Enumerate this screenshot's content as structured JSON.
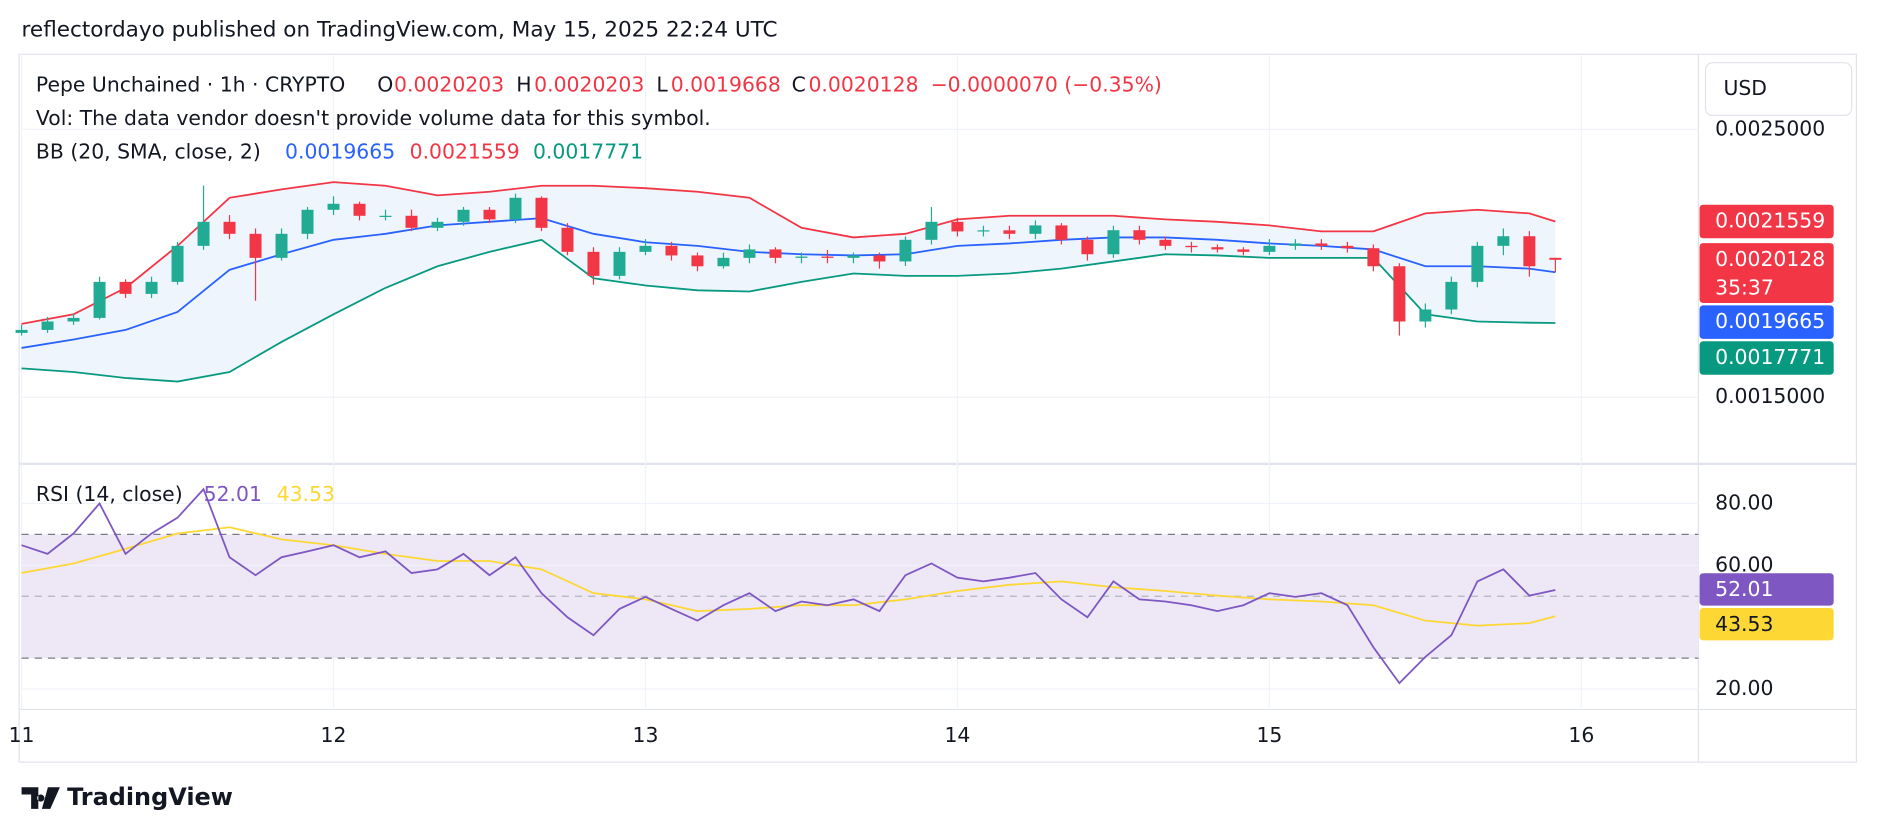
{
  "header": "reflectordayo published on TradingView.com, May 15, 2025 22:24 UTC",
  "footer": "TradingView",
  "chart_data": {
    "type": "candlestick",
    "symbol": "Pepe Unchained · 1h · CRYPTO",
    "legend_keys": [
      "O",
      "H",
      "L",
      "C"
    ],
    "change": "−0.0000070 (−0.35%)",
    "volume_note": "Vol: The data vendor doesn't provide volume data for this symbol.",
    "currency": "USD",
    "countdown": "35:37",
    "up_color": "#22ab94",
    "down_color": "#f23645",
    "xlim": [
      0,
      129
    ],
    "xticks": [
      {
        "value": 0,
        "label": "11"
      },
      {
        "value": 24,
        "label": "12"
      },
      {
        "value": 48,
        "label": "13"
      },
      {
        "value": 72,
        "label": "14"
      },
      {
        "value": 96,
        "label": "15"
      },
      {
        "value": 120,
        "label": "16"
      }
    ],
    "ylim": [
      0.00126,
      0.00278
    ],
    "yticks": [
      {
        "value": 0.0025,
        "label": "0.0025000"
      },
      {
        "value": 0.0015,
        "label": "0.0015000"
      }
    ],
    "grid": true,
    "x": [
      0,
      2,
      4,
      6,
      8,
      10,
      12,
      14,
      16,
      18,
      20,
      22,
      24,
      26,
      28,
      30,
      32,
      34,
      36,
      38,
      40,
      42,
      44,
      46,
      48,
      50,
      52,
      54,
      56,
      58,
      60,
      62,
      64,
      66,
      68,
      70,
      72,
      74,
      76,
      78,
      80,
      82,
      84,
      86,
      88,
      90,
      92,
      94,
      96,
      98,
      100,
      102,
      104,
      106,
      108,
      110,
      112,
      114,
      116,
      118
    ],
    "open": [
      0.00174,
      0.0017512,
      0.0017826,
      0.001796,
      0.0019305,
      0.0018857,
      0.0019305,
      0.002065,
      0.0021547,
      0.0021099,
      0.0020202,
      0.0021099,
      0.0021996,
      0.002222,
      0.0021772,
      0.0021772,
      0.0021323,
      0.0021547,
      0.0021996,
      0.0021637,
      0.0022444,
      0.0021323,
      0.0020426,
      0.001953,
      0.0020426,
      0.002065,
      0.0020292,
      0.0019888,
      0.0020202,
      0.0020516,
      0.0020202,
      0.002025,
      0.0020202,
      0.0020292,
      0.0020068,
      0.0020875,
      0.0021547,
      0.0021189,
      0.002123,
      0.0021099,
      0.0021413,
      0.0020875,
      0.0020337,
      0.0021234,
      0.0020875,
      0.002065,
      0.00206,
      0.0020516,
      0.0020426,
      0.002065,
      0.002074,
      0.002065,
      0.0020561,
      0.0019888,
      0.0017826,
      0.0018274,
      0.0019305,
      0.002065,
      0.0021009,
      0.0020203
    ],
    "high": [
      0.00177,
      0.0018,
      0.00181,
      0.00195,
      0.00194,
      0.00195,
      0.00208,
      0.00229,
      0.00218,
      0.00213,
      0.00213,
      0.00221,
      0.00225,
      0.00223,
      0.0022,
      0.0022,
      0.00217,
      0.00221,
      0.00221,
      0.00226,
      0.00225,
      0.00215,
      0.00206,
      0.00206,
      0.00209,
      0.00208,
      0.00204,
      0.00204,
      0.00207,
      0.00206,
      0.00204,
      0.00205,
      0.00204,
      0.00204,
      0.0021,
      0.00221,
      0.00217,
      0.00214,
      0.00214,
      0.00216,
      0.00215,
      0.0021,
      0.00214,
      0.00214,
      0.0021,
      0.00208,
      0.00207,
      0.00206,
      0.00209,
      0.00209,
      0.00209,
      0.00208,
      0.00207,
      0.002,
      0.00185,
      0.00195,
      0.00208,
      0.00213,
      0.00212,
      0.0020203
    ],
    "low": [
      0.00173,
      0.00174,
      0.00177,
      0.00179,
      0.00187,
      0.00187,
      0.00192,
      0.00205,
      0.00209,
      0.00186,
      0.00201,
      0.00209,
      0.00218,
      0.00216,
      0.00216,
      0.00212,
      0.00212,
      0.00214,
      0.00215,
      0.00215,
      0.00212,
      0.00203,
      0.00192,
      0.00194,
      0.00203,
      0.00201,
      0.00197,
      0.00198,
      0.002,
      0.002,
      0.002,
      0.002,
      0.002,
      0.00198,
      0.00199,
      0.00207,
      0.0021,
      0.0021,
      0.00209,
      0.00209,
      0.00207,
      0.00201,
      0.00202,
      0.00207,
      0.00205,
      0.00204,
      0.00204,
      0.00203,
      0.00203,
      0.00205,
      0.00205,
      0.00204,
      0.00197,
      0.00173,
      0.00176,
      0.00181,
      0.00191,
      0.00203,
      0.00195,
      0.0019668
    ],
    "close": [
      0.0017512,
      0.0017826,
      0.001796,
      0.0019305,
      0.0018857,
      0.0019305,
      0.002065,
      0.0021547,
      0.0021099,
      0.0020202,
      0.0021099,
      0.0021996,
      0.002222,
      0.0021772,
      0.0021772,
      0.0021323,
      0.0021547,
      0.0021996,
      0.0021637,
      0.0022444,
      0.0021323,
      0.0020426,
      0.001953,
      0.0020426,
      0.002065,
      0.0020292,
      0.0019888,
      0.0020202,
      0.0020516,
      0.0020202,
      0.002025,
      0.0020202,
      0.0020292,
      0.0020068,
      0.0020875,
      0.0021547,
      0.0021189,
      0.002123,
      0.0021099,
      0.0021413,
      0.0020875,
      0.0020337,
      0.0021234,
      0.0020875,
      0.002065,
      0.00206,
      0.0020516,
      0.0020426,
      0.002065,
      0.002074,
      0.002065,
      0.0020561,
      0.0019888,
      0.0017826,
      0.0018274,
      0.0019305,
      0.002065,
      0.0021009,
      0.0019888,
      0.0020128
    ],
    "bollinger": {
      "name": "BB (20, SMA, close, 2)",
      "fill_color": "#eef5fd",
      "x": [
        0,
        4,
        8,
        12,
        16,
        20,
        24,
        28,
        32,
        36,
        40,
        44,
        48,
        52,
        56,
        60,
        64,
        68,
        72,
        76,
        80,
        84,
        88,
        92,
        96,
        100,
        104,
        108,
        112,
        116,
        118
      ],
      "series": [
        {
          "color": "#2962ff",
          "values": [
            0.0016839,
            0.0017153,
            0.0017512,
            0.0018184,
            0.0019754,
            0.0020337,
            0.0020875,
            0.0021099,
            0.0021413,
            0.0021547,
            0.0021682,
            0.0021099,
            0.0020785,
            0.002065,
            0.0020426,
            0.0020337,
            0.0020292,
            0.0020337,
            0.002065,
            0.002074,
            0.0020875,
            0.0020964,
            0.0020964,
            0.0020875,
            0.002074,
            0.002065,
            0.0020516,
            0.0019888,
            0.0019888,
            0.0019799,
            0.0019665
          ]
        },
        {
          "color": "#f23645",
          "values": [
            0.0017736,
            0.0018095,
            0.0019081,
            0.002065,
            0.0022444,
            0.0022758,
            0.0023027,
            0.0022893,
            0.0022534,
            0.0022668,
            0.0022893,
            0.0022893,
            0.0022803,
            0.0022668,
            0.0022444,
            0.0021323,
            0.0020964,
            0.0021099,
            0.0021637,
            0.0021772,
            0.0021772,
            0.0021772,
            0.0021637,
            0.0021547,
            0.0021413,
            0.0021189,
            0.0021189,
            0.0021861,
            0.0021996,
            0.0021861,
            0.0021559
          ]
        },
        {
          "color": "#089981",
          "values": [
            0.0016077,
            0.0015942,
            0.0015718,
            0.0015584,
            0.0015942,
            0.0017063,
            0.0018095,
            0.0019081,
            0.0019888,
            0.0020426,
            0.0020875,
            0.001944,
            0.0019171,
            0.0018991,
            0.0018947,
            0.0019305,
            0.0019619,
            0.001953,
            0.001953,
            0.0019619,
            0.0019799,
            0.0020068,
            0.0020337,
            0.0020292,
            0.0020202,
            0.0020202,
            0.0020202,
            0.0018095,
            0.0017826,
            0.0017781,
            0.0017771
          ]
        }
      ]
    },
    "rsi": {
      "name": "RSI (14, close)",
      "ylim": [
        13.4,
        92.4
      ],
      "yticks": [
        {
          "value": 20,
          "label": "20.00"
        },
        {
          "value": 60,
          "label": "60.00"
        },
        {
          "value": 80,
          "label": "80.00"
        }
      ],
      "levels": [
        30,
        50,
        70
      ],
      "band_color": "#ede7f6",
      "color": "#7e57c2",
      "values": [
        66.5,
        63.7,
        70.3,
        80,
        63.7,
        70.3,
        75.4,
        84.6,
        62.6,
        56.8,
        62.6,
        64.5,
        66.5,
        62.6,
        64.5,
        57.5,
        58.7,
        63.7,
        56.8,
        62.6,
        51,
        43.2,
        37.4,
        45.9,
        49.8,
        45.9,
        42.1,
        47.1,
        51,
        45.2,
        48.3,
        47.1,
        49,
        45.2,
        56.8,
        60.6,
        56,
        54.8,
        56,
        57.5,
        49,
        43.2,
        54.8,
        49,
        48.3,
        47.1,
        45.2,
        47.1,
        51,
        49.8,
        51,
        47.1,
        33.5,
        21.9,
        30.4,
        37.4,
        54.8,
        58.7,
        50.2,
        52.01
      ],
      "ma_color": "#fdd835",
      "ma_values": [
        57.5,
        60.6,
        65.3,
        70.3,
        72.3,
        68.4,
        66.5,
        63.7,
        61.4,
        61.4,
        58.7,
        51,
        49,
        45.2,
        45.9,
        47.1,
        47.1,
        49,
        51.7,
        53.7,
        54.8,
        52.9,
        51.7,
        50.2,
        49,
        48.3,
        47.1,
        42.1,
        40.5,
        41.3,
        43.53
      ]
    }
  }
}
